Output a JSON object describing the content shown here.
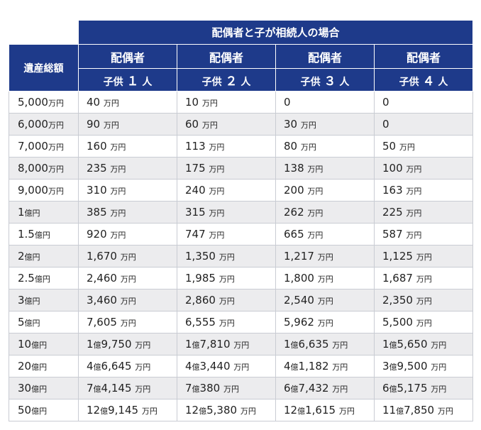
{
  "table": {
    "title": "配偶者と子が相続人の場合",
    "row_header": "遺産総額",
    "columns": [
      {
        "spouse": "配偶者",
        "kids_prefix": "子供",
        "kids_num": "１",
        "kids_suffix": "人"
      },
      {
        "spouse": "配偶者",
        "kids_prefix": "子供",
        "kids_num": "２",
        "kids_suffix": "人"
      },
      {
        "spouse": "配偶者",
        "kids_prefix": "子供",
        "kids_num": "３",
        "kids_suffix": "人"
      },
      {
        "spouse": "配偶者",
        "kids_prefix": "子供",
        "kids_num": "４",
        "kids_suffix": "人"
      }
    ],
    "rows": [
      {
        "estate": "5,000",
        "estate_unit": "万円",
        "cells": [
          {
            "v": "40",
            "u": "万円"
          },
          {
            "v": "10",
            "u": "万円"
          },
          {
            "v": "0",
            "u": ""
          },
          {
            "v": "0",
            "u": ""
          }
        ]
      },
      {
        "estate": "6,000",
        "estate_unit": "万円",
        "cells": [
          {
            "v": "90",
            "u": "万円"
          },
          {
            "v": "60",
            "u": "万円"
          },
          {
            "v": "30",
            "u": "万円"
          },
          {
            "v": "0",
            "u": ""
          }
        ]
      },
      {
        "estate": "7,000",
        "estate_unit": "万円",
        "cells": [
          {
            "v": "160",
            "u": "万円"
          },
          {
            "v": "113",
            "u": "万円"
          },
          {
            "v": "80",
            "u": "万円"
          },
          {
            "v": "50",
            "u": "万円"
          }
        ]
      },
      {
        "estate": "8,000",
        "estate_unit": "万円",
        "cells": [
          {
            "v": "235",
            "u": "万円"
          },
          {
            "v": "175",
            "u": "万円"
          },
          {
            "v": "138",
            "u": "万円"
          },
          {
            "v": "100",
            "u": "万円"
          }
        ]
      },
      {
        "estate": "9,000",
        "estate_unit": "万円",
        "cells": [
          {
            "v": "310",
            "u": "万円"
          },
          {
            "v": "240",
            "u": "万円"
          },
          {
            "v": "200",
            "u": "万円"
          },
          {
            "v": "163",
            "u": "万円"
          }
        ]
      },
      {
        "estate": "1",
        "estate_unit": "億円",
        "cells": [
          {
            "v": "385",
            "u": "万円"
          },
          {
            "v": "315",
            "u": "万円"
          },
          {
            "v": "262",
            "u": "万円"
          },
          {
            "v": "225",
            "u": "万円"
          }
        ]
      },
      {
        "estate": "1.5",
        "estate_unit": "億円",
        "cells": [
          {
            "v": "920",
            "u": "万円"
          },
          {
            "v": "747",
            "u": "万円"
          },
          {
            "v": "665",
            "u": "万円"
          },
          {
            "v": "587",
            "u": "万円"
          }
        ]
      },
      {
        "estate": "2",
        "estate_unit": "億円",
        "cells": [
          {
            "v": "1,670",
            "u": "万円"
          },
          {
            "v": "1,350",
            "u": "万円"
          },
          {
            "v": "1,217",
            "u": "万円"
          },
          {
            "v": "1,125",
            "u": "万円"
          }
        ]
      },
      {
        "estate": "2.5",
        "estate_unit": "億円",
        "cells": [
          {
            "v": "2,460",
            "u": "万円"
          },
          {
            "v": "1,985",
            "u": "万円"
          },
          {
            "v": "1,800",
            "u": "万円"
          },
          {
            "v": "1,687",
            "u": "万円"
          }
        ]
      },
      {
        "estate": "3",
        "estate_unit": "億円",
        "cells": [
          {
            "v": "3,460",
            "u": "万円"
          },
          {
            "v": "2,860",
            "u": "万円"
          },
          {
            "v": "2,540",
            "u": "万円"
          },
          {
            "v": "2,350",
            "u": "万円"
          }
        ]
      },
      {
        "estate": "5",
        "estate_unit": "億円",
        "cells": [
          {
            "v": "7,605",
            "u": "万円"
          },
          {
            "v": "6,555",
            "u": "万円"
          },
          {
            "v": "5,962",
            "u": "万円"
          },
          {
            "v": "5,500",
            "u": "万円"
          }
        ]
      },
      {
        "estate": "10",
        "estate_unit": "億円",
        "cells": [
          {
            "v": "1",
            "u1": "億",
            "v2": "9,750",
            "u": "万円"
          },
          {
            "v": "1",
            "u1": "億",
            "v2": "7,810",
            "u": "万円"
          },
          {
            "v": "1",
            "u1": "億",
            "v2": "6,635",
            "u": "万円"
          },
          {
            "v": "1",
            "u1": "億",
            "v2": "5,650",
            "u": "万円"
          }
        ]
      },
      {
        "estate": "20",
        "estate_unit": "億円",
        "cells": [
          {
            "v": "4",
            "u1": "億",
            "v2": "6,645",
            "u": "万円"
          },
          {
            "v": "4",
            "u1": "億",
            "v2": "3,440",
            "u": "万円"
          },
          {
            "v": "4",
            "u1": "億",
            "v2": "1,182",
            "u": "万円"
          },
          {
            "v": "3",
            "u1": "億",
            "v2": "9,500",
            "u": "万円"
          }
        ]
      },
      {
        "estate": "30",
        "estate_unit": "億円",
        "cells": [
          {
            "v": "7",
            "u1": "億",
            "v2": "4,145",
            "u": "万円"
          },
          {
            "v": "7",
            "u1": "億",
            "v2": "380",
            "u": "万円"
          },
          {
            "v": "6",
            "u1": "億",
            "v2": "7,432",
            "u": "万円"
          },
          {
            "v": "6",
            "u1": "億",
            "v2": "5,175",
            "u": "万円"
          }
        ]
      },
      {
        "estate": "50",
        "estate_unit": "億円",
        "cells": [
          {
            "v": "12",
            "u1": "億",
            "v2": "9,145",
            "u": "万円"
          },
          {
            "v": "12",
            "u1": "億",
            "v2": "5,380",
            "u": "万円"
          },
          {
            "v": "12",
            "u1": "億",
            "v2": "1,615",
            "u": "万円"
          },
          {
            "v": "11",
            "u1": "億",
            "v2": "7,850",
            "u": "万円"
          }
        ]
      }
    ]
  },
  "colors": {
    "header_bg": "#1e3a8a",
    "row_alt_bg": "#ececee",
    "border": "#c9ccd3"
  }
}
